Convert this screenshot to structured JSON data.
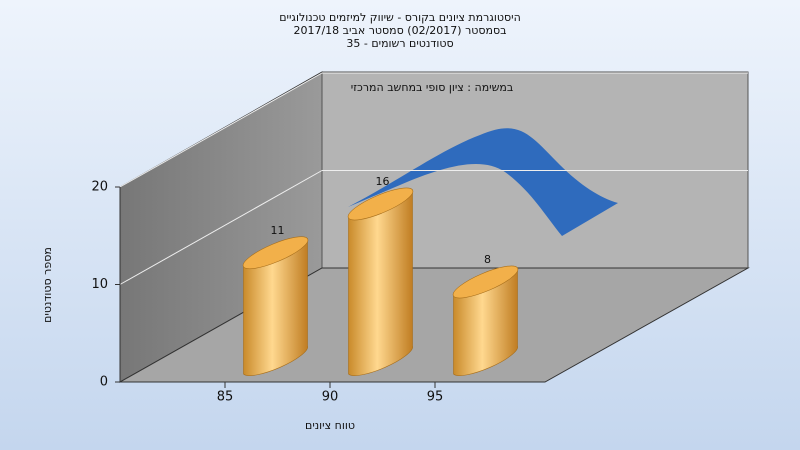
{
  "chart_data": {
    "type": "histogram",
    "title": [
      "היסטוגרמת ציונים בקורס - שיווק למיזמים טכנולוגיים",
      "בסמסטר  (02/2017)  סמסטר אביב 2017/18",
      "סטודנטים רשומים - 35"
    ],
    "annotation": "במשימה : ציון סופי במחשב המרכזי",
    "x_label": "טווח ציונים",
    "y_label": "מספר סטודנטים",
    "bins": [
      85,
      90,
      95,
      100
    ],
    "values": [
      11,
      16,
      8
    ],
    "color": "#f2b04a",
    "xlim": [
      80,
      100
    ],
    "xticks": [
      85,
      90,
      95
    ],
    "ylim": [
      0,
      20
    ],
    "yticks": [
      0,
      10,
      20
    ],
    "grid": true
  }
}
